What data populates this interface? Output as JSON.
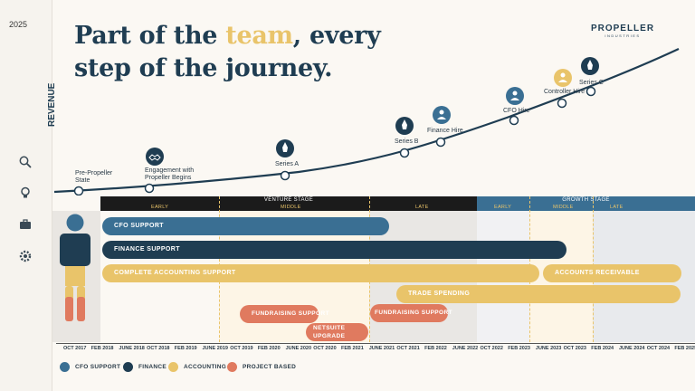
{
  "year": "2025",
  "title": {
    "part1": "Part of the ",
    "accent": "team",
    "part2": ", every",
    "line2": "step of the journey."
  },
  "brand": {
    "name": "PROPELLER",
    "sub": "INDUSTRIES"
  },
  "revenue_label": "REVENUE",
  "milestones": [
    {
      "label1": "Pre-Propeller",
      "label2": "State"
    },
    {
      "label1": "Engagement with",
      "label2": "Propeller Begins"
    },
    {
      "label1": "Series A",
      "label2": ""
    },
    {
      "label1": "Series B",
      "label2": ""
    },
    {
      "label1": "Finance Hire",
      "label2": ""
    },
    {
      "label1": "CFO Hire",
      "label2": ""
    },
    {
      "label1": "Controller Hire",
      "label2": ""
    },
    {
      "label1": "Series C",
      "label2": ""
    }
  ],
  "stages": {
    "venture": "VENTURE STAGE",
    "growth": "GROWTH STAGE",
    "sub": [
      "EARLY",
      "MIDDLE",
      "LATE",
      "EARLY",
      "MIDDLE",
      "LATE"
    ]
  },
  "bars": {
    "cfo": "CFO SUPPORT",
    "finance": "FINANCE SUPPORT",
    "accounting": "COMPLETE ACCOUNTING SUPPORT",
    "receivable": "ACCOUNTS RECEIVABLE",
    "trade": "TRADE SPENDING",
    "fund1": "FUNDRAISING SUPPORT",
    "netsuite1": "NETSUITE",
    "netsuite2": "UPGRADE",
    "fund2": "FUNDRAISING SUPPORT"
  },
  "ticks": [
    "OCT 2017",
    "FEB 2018",
    "JUNE 2018",
    "OCT 2018",
    "FEB 2019",
    "JUNE 2019",
    "OCT 2019",
    "FEB 2020",
    "JUNE 2020",
    "OCT 2020",
    "FEB 2021",
    "JUNE 2021",
    "OCT 2021",
    "FEB 2022",
    "JUNE 2022",
    "OCT 2022",
    "FEB 2023",
    "JUNE 2023",
    "OCT 2023",
    "FEB 2024",
    "JUNE 2024",
    "OCT 2024",
    "FEB 2025"
  ],
  "legend": [
    {
      "label": "CFO SUPPORT",
      "color": "#3a6f93"
    },
    {
      "label": "FINANCE",
      "color": "#1f3d52"
    },
    {
      "label": "ACCOUNTING",
      "color": "#e9c46a"
    },
    {
      "label": "PROJECT BASED",
      "color": "#e07a5f"
    }
  ],
  "colors": {
    "navy": "#1f3d52",
    "blue": "#3a6f93",
    "gold": "#e9c46a",
    "coral": "#e07a5f"
  },
  "icons": [
    "search-icon",
    "lightbulb-icon",
    "briefcase-icon",
    "gear-icon"
  ]
}
